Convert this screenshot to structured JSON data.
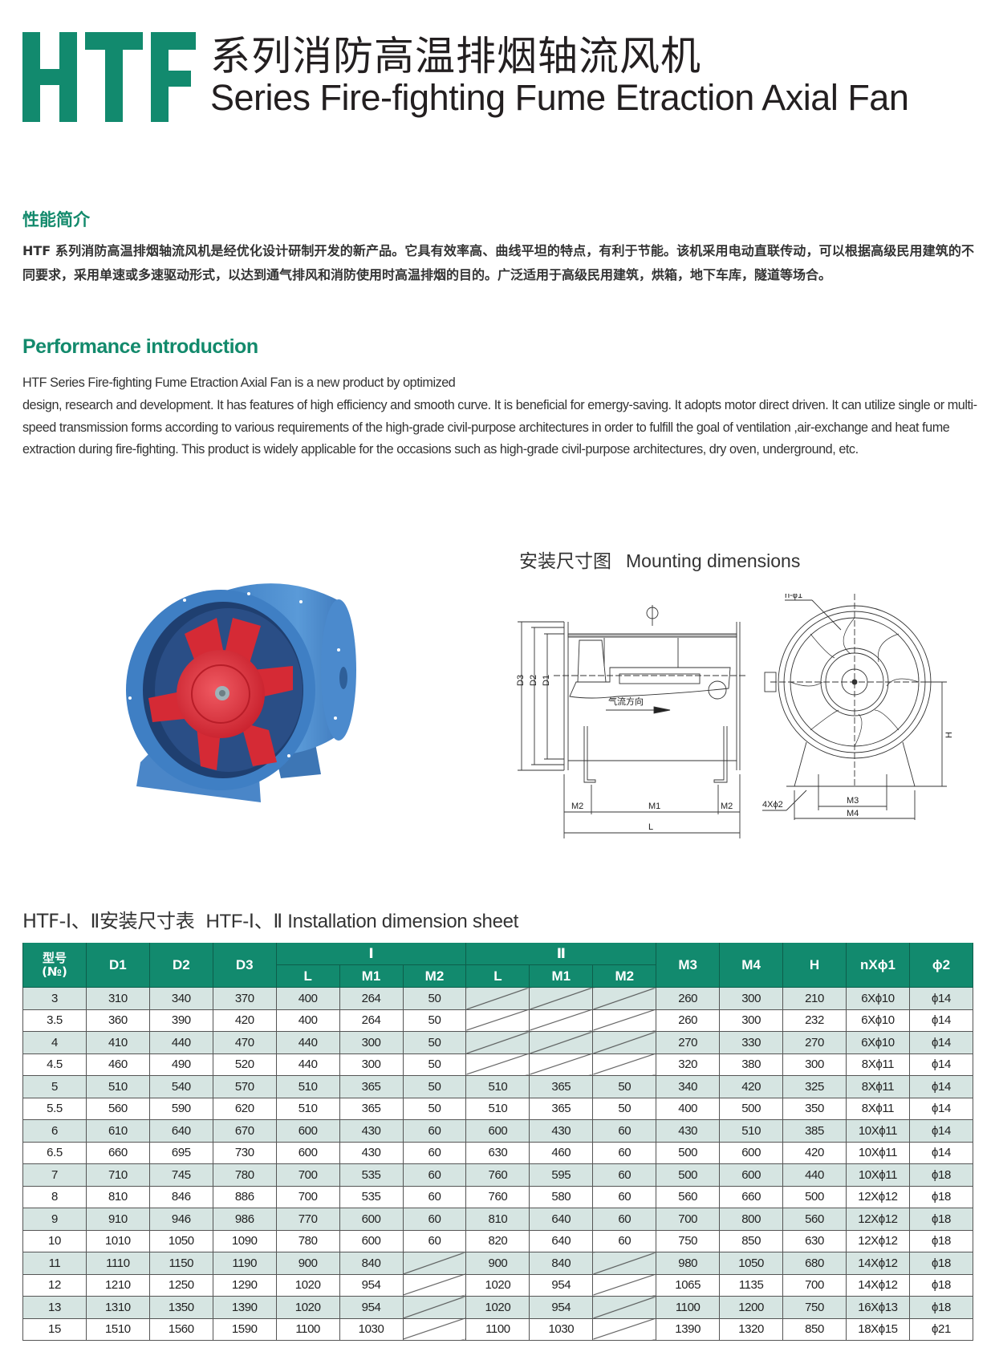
{
  "header": {
    "logo_text": "HTF",
    "title_cn": "系列消防高温排烟轴流风机",
    "title_en": "Series Fire-fighting Fume Etraction Axial Fan",
    "brand_color": "#128a6e"
  },
  "intro_cn": {
    "heading": "性能简介",
    "body": "HTF 系列消防高温排烟轴流风机是经优化设计研制开发的新产品。它具有效率高、曲线平坦的特点，有利于节能。该机采用电动直联传动，可以根据高级民用建筑的不同要求，采用单速或多速驱动形式，以达到通气排风和消防使用时高温排烟的目的。广泛适用于高级民用建筑，烘箱，地下车库，隧道等场合。"
  },
  "intro_en": {
    "heading": "Performance introduction",
    "line1": "HTF Series Fire-fighting Fume Etraction Axial Fan is a new product by optimized",
    "body": "design, research and development. It has features of high efficiency and smooth curve. It is beneficial for emergy-saving. It adopts motor direct driven. It can utilize single or multi-speed transmission forms according to various requirements of the high-grade civil-purpose architectures in order to fulfill the goal of ventilation ,air-exchange and heat fume extraction during fire-fighting. This product is widely applicable for the occasions such as high-grade civil-purpose architectures, dry oven, underground, etc."
  },
  "mounting": {
    "title_cn": "安装尺寸图",
    "title_en": "Mounting dimensions",
    "side_labels": {
      "d3": "D3",
      "d2": "D2",
      "d1": "D1",
      "airflow": "气流方向",
      "m2a": "M2",
      "m1": "M1",
      "m2b": "M2",
      "l": "L"
    },
    "front_labels": {
      "n_phi1": "n-ϕ1",
      "h": "H",
      "phi2": "4Xϕ2",
      "m3": "M3",
      "m4": "M4"
    }
  },
  "table": {
    "title_cn": "HTF-Ⅰ、Ⅱ安装尺寸表",
    "title_en": "HTF-Ⅰ、Ⅱ Installation dimension sheet",
    "header": {
      "no": "型号",
      "no_sub": "(№)",
      "d1": "D1",
      "d2": "D2",
      "d3": "D3",
      "group1": "Ⅰ",
      "group2": "Ⅱ",
      "l": "L",
      "m1": "M1",
      "m2": "M2",
      "m3": "M3",
      "m4": "M4",
      "h": "H",
      "n_phi1": "nXϕ1",
      "phi2": "ϕ2"
    },
    "rows": [
      [
        "3",
        "310",
        "340",
        "370",
        "400",
        "264",
        "50",
        null,
        null,
        null,
        "260",
        "300",
        "210",
        "6Xϕ10",
        "ϕ14"
      ],
      [
        "3.5",
        "360",
        "390",
        "420",
        "400",
        "264",
        "50",
        null,
        null,
        null,
        "260",
        "300",
        "232",
        "6Xϕ10",
        "ϕ14"
      ],
      [
        "4",
        "410",
        "440",
        "470",
        "440",
        "300",
        "50",
        null,
        null,
        null,
        "270",
        "330",
        "270",
        "6Xϕ10",
        "ϕ14"
      ],
      [
        "4.5",
        "460",
        "490",
        "520",
        "440",
        "300",
        "50",
        null,
        null,
        null,
        "320",
        "380",
        "300",
        "8Xϕ11",
        "ϕ14"
      ],
      [
        "5",
        "510",
        "540",
        "570",
        "510",
        "365",
        "50",
        "510",
        "365",
        "50",
        "340",
        "420",
        "325",
        "8Xϕ11",
        "ϕ14"
      ],
      [
        "5.5",
        "560",
        "590",
        "620",
        "510",
        "365",
        "50",
        "510",
        "365",
        "50",
        "400",
        "500",
        "350",
        "8Xϕ11",
        "ϕ14"
      ],
      [
        "6",
        "610",
        "640",
        "670",
        "600",
        "430",
        "60",
        "600",
        "430",
        "60",
        "430",
        "510",
        "385",
        "10Xϕ11",
        "ϕ14"
      ],
      [
        "6.5",
        "660",
        "695",
        "730",
        "600",
        "430",
        "60",
        "630",
        "460",
        "60",
        "500",
        "600",
        "420",
        "10Xϕ11",
        "ϕ14"
      ],
      [
        "7",
        "710",
        "745",
        "780",
        "700",
        "535",
        "60",
        "760",
        "595",
        "60",
        "500",
        "600",
        "440",
        "10Xϕ11",
        "ϕ18"
      ],
      [
        "8",
        "810",
        "846",
        "886",
        "700",
        "535",
        "60",
        "760",
        "580",
        "60",
        "560",
        "660",
        "500",
        "12Xϕ12",
        "ϕ18"
      ],
      [
        "9",
        "910",
        "946",
        "986",
        "770",
        "600",
        "60",
        "810",
        "640",
        "60",
        "700",
        "800",
        "560",
        "12Xϕ12",
        "ϕ18"
      ],
      [
        "10",
        "1010",
        "1050",
        "1090",
        "780",
        "600",
        "60",
        "820",
        "640",
        "60",
        "750",
        "850",
        "630",
        "12Xϕ12",
        "ϕ18"
      ],
      [
        "11",
        "1110",
        "1150",
        "1190",
        "900",
        "840",
        null,
        "900",
        "840",
        null,
        "980",
        "1050",
        "680",
        "14Xϕ12",
        "ϕ18"
      ],
      [
        "12",
        "1210",
        "1250",
        "1290",
        "1020",
        "954",
        null,
        "1020",
        "954",
        null,
        "1065",
        "1135",
        "700",
        "14Xϕ12",
        "ϕ18"
      ],
      [
        "13",
        "1310",
        "1350",
        "1390",
        "1020",
        "954",
        null,
        "1020",
        "954",
        null,
        "1100",
        "1200",
        "750",
        "16Xϕ13",
        "ϕ18"
      ],
      [
        "15",
        "1510",
        "1560",
        "1590",
        "1100",
        "1030",
        null,
        "1100",
        "1030",
        null,
        "1390",
        "1320",
        "850",
        "18Xϕ15",
        "ϕ21"
      ]
    ]
  }
}
